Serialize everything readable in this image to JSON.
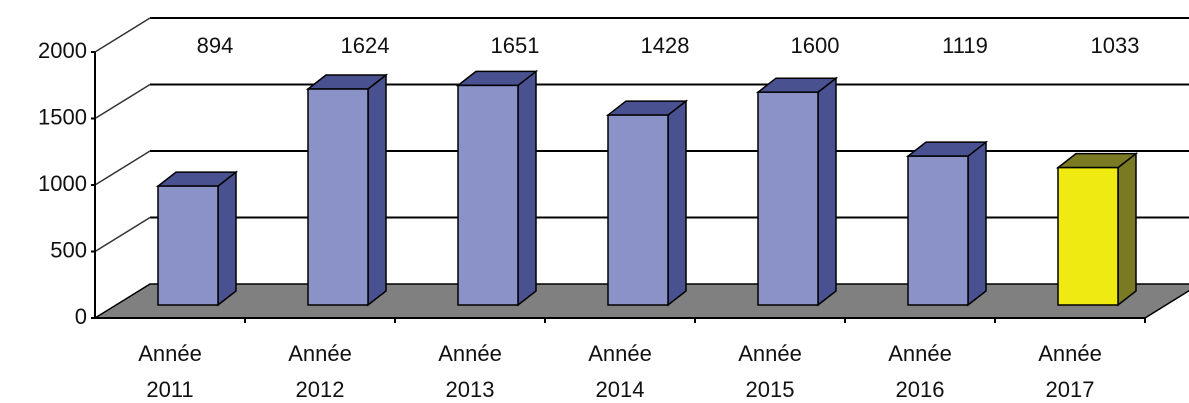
{
  "chart_data": {
    "type": "bar3d",
    "categories": [
      [
        "Année",
        "2011"
      ],
      [
        "Année",
        "2012"
      ],
      [
        "Année",
        "2013"
      ],
      [
        "Année",
        "2014"
      ],
      [
        "Année",
        "2015"
      ],
      [
        "Année",
        "2016"
      ],
      [
        "Année",
        "2017"
      ]
    ],
    "values": [
      894,
      1624,
      1651,
      1428,
      1600,
      1119,
      1033
    ],
    "colors": [
      "#8a92c8",
      "#8a92c8",
      "#8a92c8",
      "#8a92c8",
      "#8a92c8",
      "#8a92c8",
      "#eeea12"
    ],
    "ylim": [
      0,
      2000
    ],
    "yticks": [
      0,
      500,
      1000,
      1500,
      2000
    ],
    "grid": true
  }
}
